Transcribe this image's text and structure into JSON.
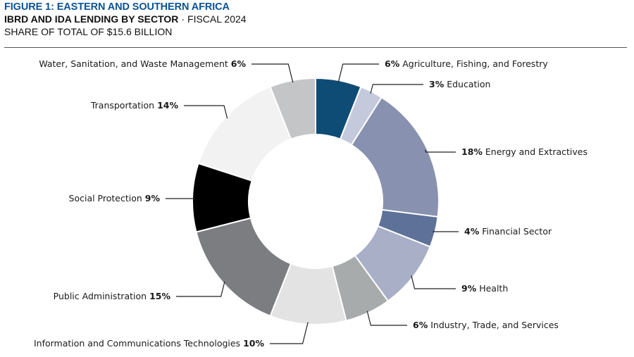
{
  "header": {
    "title": "FIGURE 1: EASTERN AND SOUTHERN AFRICA",
    "subtitle_bold": "IBRD AND IDA LENDING BY SECTOR",
    "subtitle_sep": "·",
    "subtitle_rest": "FISCAL 2024",
    "note": "SHARE OF TOTAL OF $15.6 BILLION"
  },
  "chart_data": {
    "type": "pie",
    "style": "donut",
    "grid": false,
    "legend": "none (leader-line labels)",
    "slices": [
      {
        "label": "Agriculture, Fishing, and Forestry",
        "pct_label": "6%",
        "value": 6,
        "color": "#0f4c75"
      },
      {
        "label": "Education",
        "pct_label": "3%",
        "value": 3,
        "color": "#c5c9dc"
      },
      {
        "label": "Energy and Extractives",
        "pct_label": "18%",
        "value": 18,
        "color": "#8892b0"
      },
      {
        "label": "Financial Sector",
        "pct_label": "4%",
        "value": 4,
        "color": "#5d7199"
      },
      {
        "label": "Health",
        "pct_label": "9%",
        "value": 9,
        "color": "#a9afc7"
      },
      {
        "label": "Industry, Trade, and Services",
        "pct_label": "6%",
        "value": 6,
        "color": "#a8abab"
      },
      {
        "label": "Information and Communications Technologies",
        "pct_label": "10%",
        "value": 10,
        "color": "#e3e3e3"
      },
      {
        "label": "Public Administration",
        "pct_label": "15%",
        "value": 15,
        "color": "#7b7d81"
      },
      {
        "label": "Social Protection",
        "pct_label": "9%",
        "value": 9,
        "color": "#000000"
      },
      {
        "label": "Transportation",
        "pct_label": "14%",
        "value": 14,
        "color": "#f2f2f2"
      },
      {
        "label": "Water, Sanitation, and Waste Management",
        "pct_label": "6%",
        "value": 6,
        "color": "#c4c5c7"
      }
    ]
  }
}
